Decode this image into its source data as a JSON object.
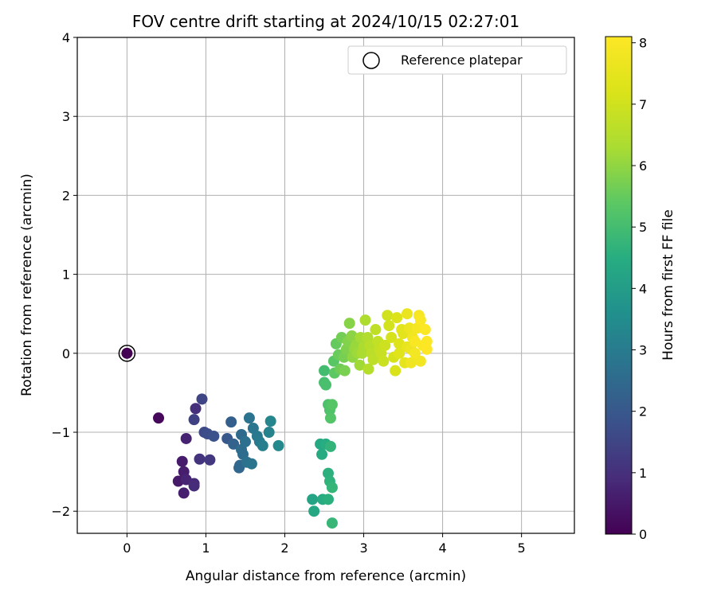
{
  "chart_data": {
    "type": "scatter",
    "title": "FOV centre drift starting at 2024/10/15 02:27:01",
    "xlabel": "Angular distance from reference (arcmin)",
    "ylabel": "Rotation from reference (arcmin)",
    "xlim": [
      -0.63,
      5.67
    ],
    "ylim": [
      -2.28,
      4.0
    ],
    "xticks": [
      0,
      1,
      2,
      3,
      4,
      5
    ],
    "yticks": [
      -2,
      -1,
      0,
      1,
      2,
      3,
      4
    ],
    "xtick_labels": [
      "0",
      "1",
      "2",
      "3",
      "4",
      "5"
    ],
    "ytick_labels": [
      "−2",
      "−1",
      "0",
      "1",
      "2",
      "3",
      "4"
    ],
    "grid": true,
    "legend": {
      "placement": "top-right",
      "entries": [
        "Reference platepar"
      ]
    },
    "colormap": "viridis",
    "colorbar": {
      "label": "Hours from first FF file",
      "range": [
        0,
        8.1
      ],
      "ticks": [
        0,
        1,
        2,
        3,
        4,
        5,
        6,
        7,
        8
      ],
      "tick_labels": [
        "0",
        "1",
        "2",
        "3",
        "4",
        "5",
        "6",
        "7",
        "8"
      ]
    },
    "reference": {
      "x": 0,
      "y": 0
    },
    "series": [
      {
        "points": [
          [
            0.0,
            0.0,
            0.0
          ],
          [
            0.4,
            -0.82,
            0.15
          ],
          [
            0.65,
            -1.62,
            0.5
          ],
          [
            0.7,
            -1.37,
            0.55
          ],
          [
            0.72,
            -1.5,
            0.6
          ],
          [
            0.72,
            -1.77,
            0.65
          ],
          [
            0.75,
            -1.08,
            0.7
          ],
          [
            0.75,
            -1.6,
            0.75
          ],
          [
            0.85,
            -1.65,
            0.85
          ],
          [
            0.85,
            -1.68,
            0.9
          ],
          [
            0.87,
            -0.7,
            1.0
          ],
          [
            0.92,
            -1.34,
            1.1
          ],
          [
            1.05,
            -1.35,
            1.2
          ],
          [
            0.85,
            -0.84,
            1.4
          ],
          [
            0.95,
            -0.58,
            1.5
          ],
          [
            0.98,
            -1.0,
            1.6
          ],
          [
            1.02,
            -1.02,
            1.7
          ],
          [
            1.1,
            -1.05,
            1.8
          ],
          [
            1.27,
            -1.08,
            2.0
          ],
          [
            1.32,
            -0.87,
            2.2
          ],
          [
            1.35,
            -1.15,
            2.3
          ],
          [
            1.42,
            -1.45,
            2.4
          ],
          [
            1.43,
            -1.42,
            2.45
          ],
          [
            1.45,
            -1.03,
            2.5
          ],
          [
            1.45,
            -1.22,
            2.55
          ],
          [
            1.47,
            -1.28,
            2.6
          ],
          [
            1.5,
            -1.12,
            2.65
          ],
          [
            1.52,
            -1.38,
            2.7
          ],
          [
            1.55,
            -0.82,
            2.75
          ],
          [
            1.58,
            -1.4,
            2.8
          ],
          [
            1.6,
            -0.95,
            2.85
          ],
          [
            1.65,
            -1.05,
            2.9
          ],
          [
            1.68,
            -1.12,
            3.0
          ],
          [
            1.72,
            -1.17,
            3.1
          ],
          [
            1.8,
            -1.0,
            3.2
          ],
          [
            1.82,
            -0.86,
            3.3
          ],
          [
            1.92,
            -1.17,
            3.4
          ],
          [
            2.35,
            -1.85,
            4.2
          ],
          [
            2.37,
            -2.0,
            4.3
          ],
          [
            2.45,
            -1.15,
            4.35
          ],
          [
            2.47,
            -1.28,
            4.4
          ],
          [
            2.48,
            -1.85,
            4.45
          ],
          [
            2.52,
            -1.15,
            4.5
          ],
          [
            2.55,
            -1.85,
            4.55
          ],
          [
            2.55,
            -1.52,
            4.6
          ],
          [
            2.57,
            -1.62,
            4.65
          ],
          [
            2.58,
            -1.18,
            4.7
          ],
          [
            2.6,
            -1.7,
            4.75
          ],
          [
            2.6,
            -2.15,
            4.8
          ],
          [
            2.5,
            -0.22,
            5.0
          ],
          [
            2.5,
            -0.37,
            5.05
          ],
          [
            2.52,
            -0.4,
            5.1
          ],
          [
            2.55,
            -0.65,
            5.15
          ],
          [
            2.57,
            -0.72,
            5.2
          ],
          [
            2.58,
            -0.82,
            5.25
          ],
          [
            2.6,
            -0.65,
            5.3
          ],
          [
            2.62,
            -0.1,
            5.35
          ],
          [
            2.63,
            -0.25,
            5.4
          ],
          [
            2.65,
            0.12,
            5.5
          ],
          [
            2.68,
            -0.02,
            5.55
          ],
          [
            2.7,
            -0.2,
            5.6
          ],
          [
            2.72,
            0.2,
            5.65
          ],
          [
            2.75,
            -0.05,
            5.7
          ],
          [
            2.76,
            -0.22,
            5.75
          ],
          [
            2.78,
            0.05,
            5.8
          ],
          [
            2.8,
            0.15,
            5.85
          ],
          [
            2.82,
            0.38,
            5.9
          ],
          [
            2.85,
            0.22,
            5.95
          ],
          [
            2.86,
            -0.05,
            6.0
          ],
          [
            2.88,
            0.05,
            6.05
          ],
          [
            2.9,
            0.1,
            6.1
          ],
          [
            2.92,
            0.0,
            6.15
          ],
          [
            2.95,
            -0.15,
            6.2
          ],
          [
            2.96,
            0.2,
            6.25
          ],
          [
            2.98,
            0.0,
            6.3
          ],
          [
            3.0,
            0.08,
            6.35
          ],
          [
            3.02,
            0.42,
            6.4
          ],
          [
            3.05,
            0.2,
            6.45
          ],
          [
            3.06,
            -0.2,
            6.5
          ],
          [
            3.08,
            0.1,
            6.55
          ],
          [
            3.1,
            0.0,
            6.6
          ],
          [
            3.12,
            -0.08,
            6.65
          ],
          [
            3.15,
            0.3,
            6.7
          ],
          [
            3.18,
            0.15,
            6.75
          ],
          [
            3.2,
            0.05,
            6.8
          ],
          [
            3.22,
            0.0,
            6.85
          ],
          [
            3.25,
            -0.1,
            6.9
          ],
          [
            3.27,
            0.1,
            6.95
          ],
          [
            3.3,
            0.48,
            7.0
          ],
          [
            3.32,
            0.35,
            7.05
          ],
          [
            3.35,
            0.2,
            7.1
          ],
          [
            3.38,
            -0.05,
            7.15
          ],
          [
            3.4,
            -0.22,
            7.2
          ],
          [
            3.42,
            0.45,
            7.25
          ],
          [
            3.45,
            0.12,
            7.3
          ],
          [
            3.45,
            0.0,
            7.35
          ],
          [
            3.48,
            0.3,
            7.4
          ],
          [
            3.5,
            0.25,
            7.45
          ],
          [
            3.52,
            -0.12,
            7.5
          ],
          [
            3.55,
            0.08,
            7.55
          ],
          [
            3.55,
            0.5,
            7.6
          ],
          [
            3.58,
            0.32,
            7.65
          ],
          [
            3.6,
            0.05,
            7.7
          ],
          [
            3.6,
            -0.12,
            7.75
          ],
          [
            3.62,
            0.2,
            7.8
          ],
          [
            3.65,
            0.0,
            7.85
          ],
          [
            3.68,
            0.32,
            7.9
          ],
          [
            3.7,
            0.48,
            7.95
          ],
          [
            3.72,
            0.42,
            8.0
          ],
          [
            3.75,
            0.1,
            8.02
          ],
          [
            3.78,
            0.3,
            8.05
          ],
          [
            3.8,
            0.15,
            8.07
          ],
          [
            3.8,
            0.05,
            8.1
          ],
          [
            3.65,
            0.15,
            8.0
          ],
          [
            3.72,
            -0.1,
            7.8
          ]
        ]
      }
    ]
  }
}
